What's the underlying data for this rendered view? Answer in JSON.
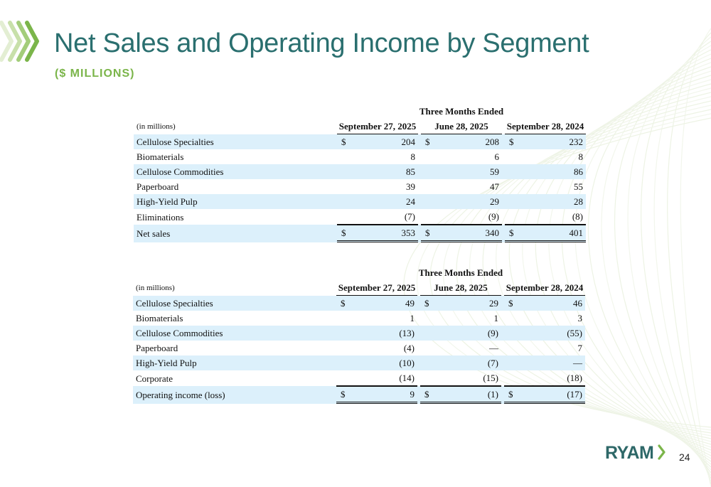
{
  "slide": {
    "title": "Net Sales and Operating Income by Segment",
    "subtitle": "($ MILLIONS)",
    "page_number": "24"
  },
  "logo": {
    "text": "RYAM"
  },
  "colors": {
    "title": "#2a6f6f",
    "accent_green": "#7bb54a",
    "row_band": "#dcf0fb"
  },
  "net_sales_table": {
    "group_header": "Three Months Ended",
    "unit_label": "(in millions)",
    "columns": [
      "September 27, 2025",
      "June 28, 2025",
      "September 28, 2024"
    ],
    "rows": [
      {
        "label": "Cellulose Specialties",
        "values": [
          "204",
          "208",
          "232"
        ],
        "currency": true
      },
      {
        "label": "Biomaterials",
        "values": [
          "8",
          "6",
          "8"
        ]
      },
      {
        "label": "Cellulose Commodities",
        "values": [
          "85",
          "59",
          "86"
        ]
      },
      {
        "label": "Paperboard",
        "values": [
          "39",
          "47",
          "55"
        ]
      },
      {
        "label": "High-Yield Pulp",
        "values": [
          "24",
          "29",
          "28"
        ]
      },
      {
        "label": "Eliminations",
        "values": [
          "(7)",
          "(9)",
          "(8)"
        ],
        "underline": true
      },
      {
        "label": "Net sales",
        "values": [
          "353",
          "340",
          "401"
        ],
        "currency": true,
        "total": true
      }
    ]
  },
  "operating_income_table": {
    "group_header": "Three Months Ended",
    "unit_label": "(in millions)",
    "columns": [
      "September 27, 2025",
      "June 28, 2025",
      "September 28, 2024"
    ],
    "rows": [
      {
        "label": "Cellulose Specialties",
        "values": [
          "49",
          "29",
          "46"
        ],
        "currency": true
      },
      {
        "label": "Biomaterials",
        "values": [
          "1",
          "1",
          "3"
        ]
      },
      {
        "label": "Cellulose Commodities",
        "values": [
          "(13)",
          "(9)",
          "(55)"
        ]
      },
      {
        "label": "Paperboard",
        "values": [
          "(4)",
          "—",
          "7"
        ]
      },
      {
        "label": "High-Yield Pulp",
        "values": [
          "(10)",
          "(7)",
          "—"
        ]
      },
      {
        "label": "Corporate",
        "values": [
          "(14)",
          "(15)",
          "(18)"
        ],
        "underline": true
      },
      {
        "label": "Operating income (loss)",
        "values": [
          "9",
          "(1)",
          "(17)"
        ],
        "currency": true,
        "total": true
      }
    ]
  }
}
